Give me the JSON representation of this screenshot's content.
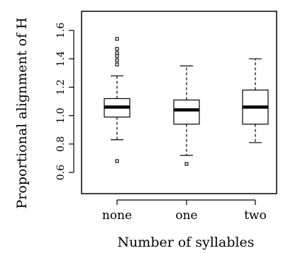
{
  "chart_data": {
    "type": "boxplot",
    "xlabel": "Number of syllables",
    "ylabel": "Proportional alignment of H",
    "yticks": [
      "0.6",
      "0.8",
      "1.0",
      "1.2",
      "1.4",
      "1.6"
    ],
    "ylim": [
      0.55,
      1.7
    ],
    "categories": [
      "none",
      "one",
      "two"
    ],
    "boxes": [
      {
        "category": "none",
        "whisker_low": 0.83,
        "q1": 0.99,
        "median": 1.06,
        "q3": 1.12,
        "whisker_high": 1.28,
        "outliers": [
          0.68,
          1.36,
          1.39,
          1.42,
          1.44,
          1.47,
          1.54
        ]
      },
      {
        "category": "one",
        "whisker_low": 0.72,
        "q1": 0.94,
        "median": 1.04,
        "q3": 1.11,
        "whisker_high": 1.35,
        "outliers": [
          0.66
        ]
      },
      {
        "category": "two",
        "whisker_low": 0.81,
        "q1": 0.94,
        "median": 1.06,
        "q3": 1.18,
        "whisker_high": 1.4,
        "outliers": []
      }
    ],
    "grid": false,
    "legend": "none"
  }
}
